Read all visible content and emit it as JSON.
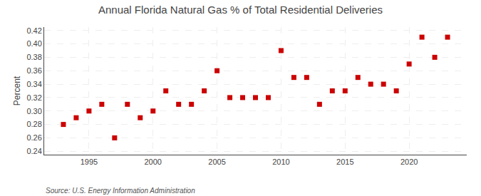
{
  "chart_data": {
    "type": "scatter",
    "title": "Annual Florida Natural Gas % of Total Residential Deliveries",
    "ylabel": "Percent",
    "annotations": [
      "Source: U.S. Energy Information Administration"
    ],
    "x": [
      1993,
      1994,
      1995,
      1996,
      1997,
      1998,
      1999,
      2000,
      2001,
      2002,
      2003,
      2004,
      2005,
      2006,
      2007,
      2008,
      2009,
      2010,
      2011,
      2012,
      2013,
      2014,
      2015,
      2016,
      2017,
      2018,
      2019,
      2020,
      2021,
      2022,
      2023
    ],
    "values": [
      0.28,
      0.29,
      0.3,
      0.31,
      0.26,
      0.31,
      0.29,
      0.3,
      0.33,
      0.31,
      0.31,
      0.33,
      0.36,
      0.32,
      0.32,
      0.32,
      0.32,
      0.39,
      0.35,
      0.35,
      0.31,
      0.33,
      0.33,
      0.35,
      0.34,
      0.34,
      0.33,
      0.37,
      0.41,
      0.38,
      0.41
    ],
    "color": "#cc0000",
    "marker": "square",
    "xlim": [
      1991.5,
      2024.5
    ],
    "xticks": [
      1995,
      2000,
      2005,
      2010,
      2015,
      2020
    ],
    "ylim": [
      0.235,
      0.425
    ],
    "yticks": [
      0.24,
      0.26,
      0.28,
      {
        "value": 0.3,
        "label": "0.30"
      },
      0.32,
      0.34,
      0.36,
      0.38,
      {
        "value": 0.4,
        "label": "0.40"
      },
      0.42
    ],
    "grid": true
  }
}
